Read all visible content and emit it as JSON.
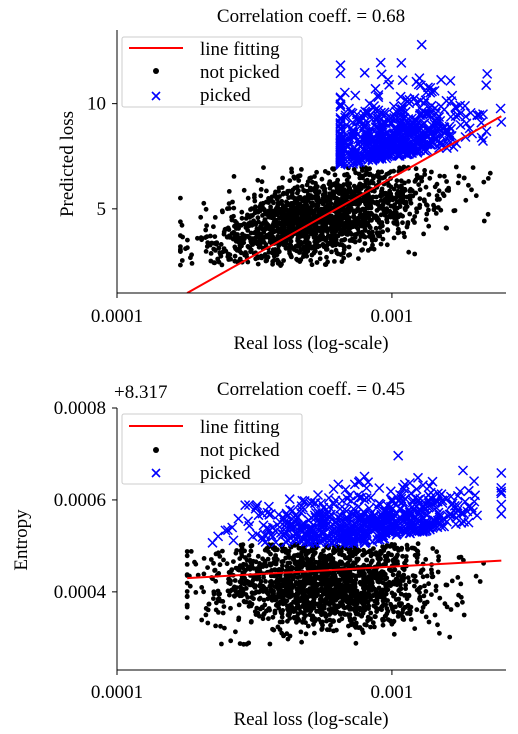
{
  "chart_data": [
    {
      "type": "scatter",
      "title": "Correlation coeff. = 0.68",
      "xlabel": "Real loss (log-scale)",
      "ylabel": "Predicted loss",
      "x_scale": "log",
      "xlim": [
        0.0001,
        0.0026
      ],
      "ylim": [
        1,
        13.5
      ],
      "x_ticks": [
        {
          "value": 0.0001,
          "label": "0.0001"
        },
        {
          "value": 0.001,
          "label": "0.001"
        }
      ],
      "y_ticks": [
        {
          "value": 5,
          "label": "5"
        },
        {
          "value": 10,
          "label": "10"
        }
      ],
      "legend": {
        "placement": "top-left",
        "entries": [
          {
            "label": "line fitting",
            "marker": "line",
            "color": "#ff0000"
          },
          {
            "label": "not picked",
            "marker": "dot",
            "color": "#000000"
          },
          {
            "label": "picked",
            "marker": "x",
            "color": "#0000ff"
          }
        ]
      },
      "fit_line": {
        "name": "line fitting",
        "color": "#ff0000",
        "x": [
          0.00018,
          0.0025
        ],
        "y": [
          1.0,
          9.4
        ]
      },
      "series": [
        {
          "name": "not picked",
          "color": "#000000",
          "marker": "dot",
          "x_range": [
            0.00017,
            0.0025
          ],
          "y_range": [
            2.3,
            7.0
          ],
          "count": 1700
        },
        {
          "name": "picked",
          "color": "#0000ff",
          "marker": "x",
          "x_range": [
            0.00065,
            0.0025
          ],
          "y_range": [
            7.0,
            12.8
          ],
          "count": 600
        }
      ]
    },
    {
      "type": "scatter",
      "title": "Correlation coeff. = 0.45",
      "offset_label": "+8.317",
      "xlabel": "Real loss (log-scale)",
      "ylabel": "Entropy",
      "x_scale": "log",
      "xlim": [
        0.0001,
        0.0026
      ],
      "ylim": [
        0.00023,
        0.0008
      ],
      "x_ticks": [
        {
          "value": 0.0001,
          "label": "0.0001"
        },
        {
          "value": 0.001,
          "label": "0.001"
        }
      ],
      "y_ticks": [
        {
          "value": 0.0004,
          "label": "0.0004"
        },
        {
          "value": 0.0006,
          "label": "0.0006"
        },
        {
          "value": 0.0008,
          "label": "0.0008"
        }
      ],
      "legend": {
        "placement": "top-left",
        "entries": [
          {
            "label": "line fitting",
            "marker": "line",
            "color": "#ff0000"
          },
          {
            "label": "not picked",
            "marker": "dot",
            "color": "#000000"
          },
          {
            "label": "picked",
            "marker": "x",
            "color": "#0000ff"
          }
        ]
      },
      "fit_line": {
        "name": "line fitting",
        "color": "#ff0000",
        "x": [
          0.00018,
          0.0025
        ],
        "y": [
          0.00043,
          0.000468
        ]
      },
      "series": [
        {
          "name": "not picked",
          "color": "#000000",
          "marker": "dot",
          "x_range": [
            0.00018,
            0.0025
          ],
          "y_range": [
            0.00028,
            0.000505
          ],
          "count": 1700
        },
        {
          "name": "picked",
          "color": "#0000ff",
          "marker": "x",
          "x_range": [
            0.00018,
            0.0025
          ],
          "y_range": [
            0.000505,
            0.00075
          ],
          "count": 600
        }
      ]
    }
  ]
}
